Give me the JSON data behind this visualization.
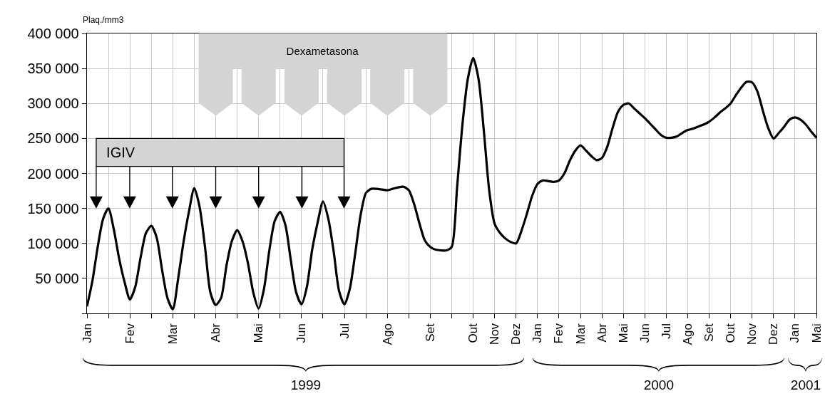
{
  "chart_data": {
    "type": "line",
    "ylabel": "Plaq./mm3",
    "annotations": [
      "IGIV",
      "Dexametasona",
      "1999",
      "2000",
      "2001"
    ],
    "categories": [
      "Jan",
      null,
      null,
      null,
      null,
      null,
      null,
      null,
      "Fev",
      null,
      null,
      null,
      null,
      null,
      null,
      null,
      "Mar",
      null,
      null,
      null,
      null,
      null,
      null,
      null,
      "Abr",
      null,
      null,
      null,
      null,
      null,
      null,
      null,
      "Mai",
      null,
      null,
      null,
      null,
      null,
      null,
      null,
      "Jun",
      null,
      null,
      null,
      null,
      null,
      null,
      null,
      "Jul",
      null,
      null,
      null,
      null,
      null,
      null,
      null,
      "Ago",
      null,
      null,
      null,
      null,
      null,
      null,
      null,
      "Set",
      null,
      null,
      null,
      null,
      null,
      null,
      null,
      "Out",
      null,
      null,
      null,
      "Nov",
      null,
      null,
      null,
      "Dez",
      null,
      null,
      null,
      "Jan",
      null,
      null,
      null,
      "Fev",
      null,
      null,
      null,
      "Mar",
      null,
      null,
      null,
      "Abr",
      null,
      null,
      null,
      "Mai",
      null,
      null,
      null,
      "Jun",
      null,
      null,
      null,
      "Jul",
      null,
      null,
      null,
      "Ago",
      null,
      null,
      null,
      "Set",
      null,
      null,
      null,
      "Out",
      null,
      null,
      null,
      "Nov",
      null,
      null,
      null,
      "Dez",
      null,
      null,
      null,
      "Jan",
      null,
      null,
      null,
      "Mai"
    ],
    "values": [
      10000,
      46000,
      95000,
      135000,
      150000,
      120000,
      78000,
      45000,
      20000,
      38000,
      80000,
      115000,
      125000,
      108000,
      62000,
      22000,
      6000,
      50000,
      102000,
      145000,
      179000,
      152000,
      95000,
      30000,
      12000,
      22000,
      68000,
      103000,
      119000,
      103000,
      72000,
      30000,
      7000,
      35000,
      90000,
      132000,
      145000,
      126000,
      76000,
      30000,
      13000,
      38000,
      92000,
      130000,
      160000,
      135000,
      88000,
      32000,
      13000,
      35000,
      85000,
      140000,
      172000,
      178000,
      178000,
      177000,
      176000,
      178000,
      180000,
      181000,
      176000,
      156000,
      128000,
      104000,
      95000,
      91000,
      90000,
      90000,
      95000,
      180000,
      270000,
      335000,
      365000,
      335000,
      260000,
      175000,
      128000,
      115000,
      107000,
      102000,
      100000,
      118000,
      142000,
      168000,
      185000,
      190000,
      189000,
      188000,
      190000,
      200000,
      218000,
      232000,
      240000,
      233000,
      225000,
      219000,
      222000,
      238000,
      265000,
      288000,
      298000,
      300000,
      293000,
      286000,
      279000,
      271000,
      263000,
      255000,
      251000,
      251000,
      253000,
      258000,
      262000,
      264000,
      267000,
      270000,
      274000,
      280000,
      287000,
      293000,
      300000,
      312000,
      323000,
      331000,
      330000,
      317000,
      290000,
      265000,
      250000,
      258000,
      267000,
      277000,
      280000,
      277000,
      270000,
      260000,
      251000
    ],
    "color": "#000000",
    "line_style": "solid",
    "ylim": [
      0,
      400000
    ],
    "yticks": [
      {
        "value": 0,
        "label": null
      },
      {
        "value": 50000,
        "label": "50 000"
      },
      {
        "value": 100000,
        "label": "100 000"
      },
      {
        "value": 150000,
        "label": "150 000"
      },
      {
        "value": 200000,
        "label": "200 000"
      },
      {
        "value": 250000,
        "label": "250 000"
      },
      {
        "value": 300000,
        "label": "300 000"
      },
      {
        "value": 350000,
        "label": "350 000"
      },
      {
        "value": 400000,
        "label": "400 000"
      }
    ],
    "grid": true
  }
}
